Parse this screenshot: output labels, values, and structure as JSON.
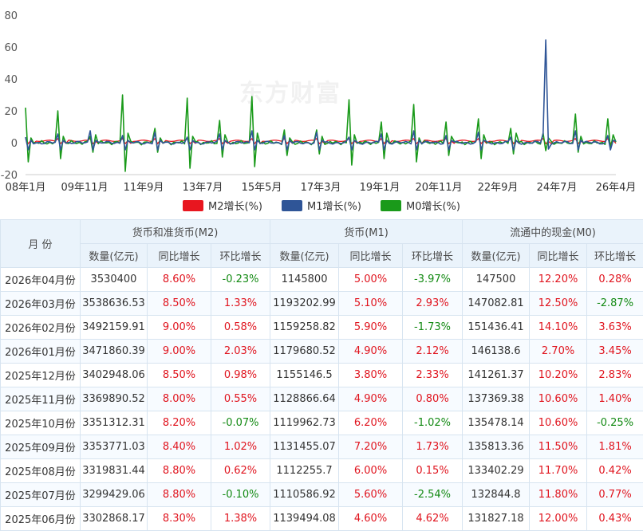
{
  "chart_data": {
    "type": "line",
    "ylim": [
      -20,
      80
    ],
    "yticks": [
      80,
      60,
      40,
      20,
      0,
      -20
    ],
    "xtick_labels": [
      "08年1月",
      "09年11月",
      "11年9月",
      "13年7月",
      "15年5月",
      "17年3月",
      "19年1月",
      "20年11月",
      "22年9月",
      "24年7月",
      "26年4月"
    ],
    "legend_position": "bottom-center",
    "grid": false,
    "series": [
      {
        "name": "M2增长(%)",
        "color": "#e8161f",
        "key": "m2"
      },
      {
        "name": "M1增长(%)",
        "color": "#2f5597",
        "key": "m1"
      },
      {
        "name": "M0增长(%)",
        "color": "#1a9a1a",
        "key": "m0"
      }
    ],
    "annotations": {
      "m1_peak_month": "2024年2月",
      "m1_peak_value": 64.5
    }
  },
  "watermark": "东方财富",
  "table": {
    "col_month": "月 份",
    "groups": [
      "货币和准货币(M2)",
      "货币(M1)",
      "流通中的现金(M0)"
    ],
    "sub": [
      "数量(亿元)",
      "同比增长",
      "环比增长"
    ],
    "rows": [
      {
        "month": "2026年04月份",
        "m2": [
          "3530400",
          "8.60%",
          "-0.23%"
        ],
        "m1": [
          "1145800",
          "5.00%",
          "-3.97%"
        ],
        "m0": [
          "147500",
          "12.20%",
          "0.28%"
        ]
      },
      {
        "month": "2026年03月份",
        "m2": [
          "3538636.53",
          "8.50%",
          "1.33%"
        ],
        "m1": [
          "1193202.99",
          "5.10%",
          "2.93%"
        ],
        "m0": [
          "147082.81",
          "12.50%",
          "-2.87%"
        ]
      },
      {
        "month": "2026年02月份",
        "m2": [
          "3492159.91",
          "9.00%",
          "0.58%"
        ],
        "m1": [
          "1159258.82",
          "5.90%",
          "-1.73%"
        ],
        "m0": [
          "151436.41",
          "14.10%",
          "3.63%"
        ]
      },
      {
        "month": "2026年01月份",
        "m2": [
          "3471860.39",
          "9.00%",
          "2.03%"
        ],
        "m1": [
          "1179680.52",
          "4.90%",
          "2.12%"
        ],
        "m0": [
          "146138.6",
          "2.70%",
          "3.45%"
        ]
      },
      {
        "month": "2025年12月份",
        "m2": [
          "3402948.06",
          "8.50%",
          "0.98%"
        ],
        "m1": [
          "1155146.5",
          "3.80%",
          "2.33%"
        ],
        "m0": [
          "141261.37",
          "10.20%",
          "2.83%"
        ]
      },
      {
        "month": "2025年11月份",
        "m2": [
          "3369890.52",
          "8.00%",
          "0.55%"
        ],
        "m1": [
          "1128866.64",
          "4.90%",
          "0.80%"
        ],
        "m0": [
          "137369.38",
          "10.60%",
          "1.40%"
        ]
      },
      {
        "month": "2025年10月份",
        "m2": [
          "3351312.31",
          "8.20%",
          "-0.07%"
        ],
        "m1": [
          "1119962.73",
          "6.20%",
          "-1.02%"
        ],
        "m0": [
          "135478.14",
          "10.60%",
          "-0.25%"
        ]
      },
      {
        "month": "2025年09月份",
        "m2": [
          "3353771.03",
          "8.40%",
          "1.02%"
        ],
        "m1": [
          "1131455.07",
          "7.20%",
          "1.73%"
        ],
        "m0": [
          "135813.36",
          "11.50%",
          "1.81%"
        ]
      },
      {
        "month": "2025年08月份",
        "m2": [
          "3319831.44",
          "8.80%",
          "0.62%"
        ],
        "m1": [
          "1112255.7",
          "6.00%",
          "0.15%"
        ],
        "m0": [
          "133402.29",
          "11.70%",
          "0.42%"
        ]
      },
      {
        "month": "2025年07月份",
        "m2": [
          "3299429.06",
          "8.80%",
          "-0.10%"
        ],
        "m1": [
          "1110586.92",
          "5.60%",
          "-2.54%"
        ],
        "m0": [
          "132844.8",
          "11.80%",
          "0.77%"
        ]
      },
      {
        "month": "2025年06月份",
        "m2": [
          "3302868.17",
          "8.30%",
          "1.38%"
        ],
        "m1": [
          "1139494.08",
          "4.60%",
          "4.62%"
        ],
        "m0": [
          "131827.18",
          "12.00%",
          "0.43%"
        ]
      }
    ]
  }
}
